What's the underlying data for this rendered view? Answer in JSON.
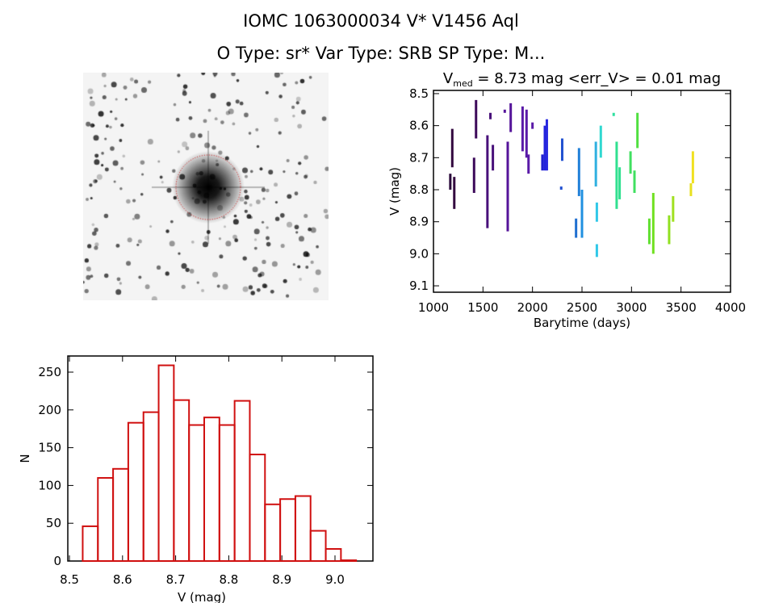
{
  "header": {
    "title": "IOMC 1063000034    V* V1456 Aql",
    "subtitle": "O Type: sr*  Var Type: SRB  SP Type: M..."
  },
  "chart_data": [
    {
      "type": "scatter",
      "title_prefix": "V",
      "title_sub": "med",
      "title_rest": " = 8.73 mag <err_V> = 0.01 mag",
      "xlabel": "Barytime (days)",
      "ylabel": "V (mag)",
      "xlim": [
        1000,
        4000
      ],
      "ylim": [
        9.12,
        8.49
      ],
      "xticks": [
        1000,
        1500,
        2000,
        2500,
        3000,
        3500,
        4000
      ],
      "yticks": [
        "8.5",
        "8.6",
        "8.7",
        "8.8",
        "8.9",
        "9.0",
        "9.1"
      ],
      "segments": [
        [
          1170,
          8.75,
          8.8,
          "#2a0a3a"
        ],
        [
          1190,
          8.61,
          8.73,
          "#33093f"
        ],
        [
          1210,
          8.76,
          8.86,
          "#33093f"
        ],
        [
          1410,
          8.7,
          8.81,
          "#3d0a5a"
        ],
        [
          1430,
          8.52,
          8.64,
          "#3d0a5a"
        ],
        [
          1545,
          8.63,
          8.92,
          "#48107a"
        ],
        [
          1575,
          8.56,
          8.58,
          "#48107a"
        ],
        [
          1600,
          8.66,
          8.74,
          "#48107a"
        ],
        [
          1720,
          8.55,
          8.56,
          "#55149a"
        ],
        [
          1750,
          8.65,
          8.93,
          "#55149a"
        ],
        [
          1780,
          8.53,
          8.62,
          "#55149a"
        ],
        [
          1900,
          8.54,
          8.68,
          "#5a1aa8"
        ],
        [
          1940,
          8.55,
          8.7,
          "#5a1aa8"
        ],
        [
          1960,
          8.69,
          8.75,
          "#5a1aa8"
        ],
        [
          2000,
          8.59,
          8.61,
          "#5a1aa8"
        ],
        [
          2100,
          8.69,
          8.74,
          "#2020d0"
        ],
        [
          2125,
          8.6,
          8.74,
          "#2424dc"
        ],
        [
          2145,
          8.58,
          8.74,
          "#2828e0"
        ],
        [
          2290,
          8.79,
          8.8,
          "#2050d0"
        ],
        [
          2300,
          8.64,
          8.71,
          "#2050d0"
        ],
        [
          2440,
          8.89,
          8.95,
          "#2070d0"
        ],
        [
          2470,
          8.67,
          8.82,
          "#2080d8"
        ],
        [
          2500,
          8.8,
          8.95,
          "#2090e0"
        ],
        [
          2640,
          8.65,
          8.79,
          "#30b0e0"
        ],
        [
          2650,
          8.84,
          8.9,
          "#30c8e8"
        ],
        [
          2650,
          8.97,
          9.01,
          "#30c8e8"
        ],
        [
          2690,
          8.6,
          8.7,
          "#30d8d0"
        ],
        [
          2820,
          8.56,
          8.57,
          "#30e0a0"
        ],
        [
          2850,
          8.65,
          8.86,
          "#30e090"
        ],
        [
          2880,
          8.73,
          8.83,
          "#30e090"
        ],
        [
          2990,
          8.68,
          8.75,
          "#40e060"
        ],
        [
          3030,
          8.74,
          8.81,
          "#40e060"
        ],
        [
          3060,
          8.56,
          8.67,
          "#50e040"
        ],
        [
          3180,
          8.89,
          8.97,
          "#60e030"
        ],
        [
          3220,
          8.81,
          9.0,
          "#70e020"
        ],
        [
          3380,
          8.88,
          8.97,
          "#90e020"
        ],
        [
          3420,
          8.82,
          8.9,
          "#a0e020"
        ],
        [
          3600,
          8.78,
          8.82,
          "#e8e020"
        ],
        [
          3620,
          8.68,
          8.78,
          "#f0e020"
        ]
      ]
    },
    {
      "type": "bar",
      "xlabel": "V (mag)",
      "ylabel": "N",
      "xlim": [
        8.5,
        9.07
      ],
      "ylim": [
        -5,
        270
      ],
      "bin_start": 8.525,
      "bin_width": 0.0286,
      "values": [
        46,
        110,
        122,
        183,
        197,
        259,
        213,
        180,
        190,
        180,
        212,
        141,
        75,
        82,
        86,
        40,
        16,
        1
      ],
      "xticks": [
        "8.5",
        "8.6",
        "8.7",
        "8.8",
        "8.9",
        "9.0"
      ],
      "yticks": [
        "0",
        "50",
        "100",
        "150",
        "200",
        "250"
      ],
      "bar_color": "#d01010"
    }
  ]
}
